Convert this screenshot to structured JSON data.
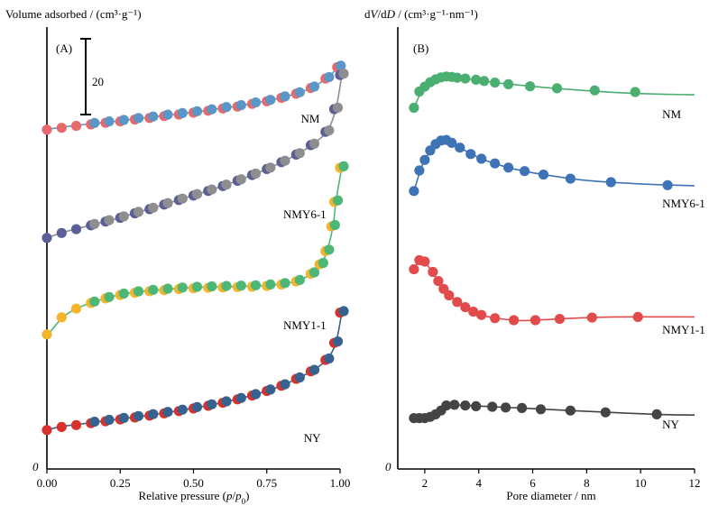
{
  "chart_data": [
    {
      "type": "scatter",
      "panel": "(A)",
      "ylabel": "Volume adsorbed / (cm³·g⁻¹)",
      "xlabel": "Relative pressure (p/p0)",
      "xlabel_parts": [
        "Relative pressure (",
        "p",
        "/",
        "p",
        "0",
        ")"
      ],
      "origin_label": "0",
      "xlim": [
        0,
        1
      ],
      "xticks": [
        "0.00",
        "0.25",
        "0.50",
        "0.75",
        "1.00"
      ],
      "scale_bar_label": "20",
      "scale_bar_value": 20,
      "y_axis_numeric": false,
      "legend": "curve labels at right end of each isotherm",
      "series": [
        {
          "name": "NM",
          "colors": [
            "#e8696b",
            "#5b97c6"
          ],
          "label_x": 0.86,
          "x": [
            0.0,
            0.05,
            0.1,
            0.15,
            0.2,
            0.25,
            0.3,
            0.35,
            0.4,
            0.45,
            0.5,
            0.55,
            0.6,
            0.65,
            0.7,
            0.75,
            0.8,
            0.85,
            0.9,
            0.95,
            0.99
          ],
          "y": [
            0.0,
            0.5,
            1.0,
            1.4,
            1.8,
            2.2,
            2.7,
            3.1,
            3.6,
            4.0,
            4.5,
            5.0,
            5.6,
            6.1,
            6.8,
            7.5,
            8.4,
            9.5,
            11.0,
            13.5,
            16.5
          ]
        },
        {
          "name": "NMY6-1",
          "colors": [
            "#5c5f96",
            "#8e8e91"
          ],
          "label_x": 0.8,
          "x": [
            0.0,
            0.05,
            0.1,
            0.15,
            0.2,
            0.25,
            0.3,
            0.35,
            0.4,
            0.45,
            0.5,
            0.55,
            0.6,
            0.65,
            0.7,
            0.75,
            0.8,
            0.85,
            0.9,
            0.95,
            0.98,
            1.0
          ],
          "y": [
            0.0,
            1.3,
            2.3,
            3.3,
            4.3,
            5.3,
            6.5,
            7.6,
            8.8,
            10.0,
            11.2,
            12.4,
            13.7,
            15.1,
            16.6,
            18.2,
            20.0,
            22.0,
            24.5,
            28.0,
            34.0,
            43.0
          ]
        },
        {
          "name": "NMY1-1",
          "colors": [
            "#f2b52b",
            "#4cb777"
          ],
          "label_x": 0.8,
          "x": [
            0.0,
            0.05,
            0.1,
            0.15,
            0.2,
            0.25,
            0.3,
            0.35,
            0.4,
            0.45,
            0.5,
            0.55,
            0.6,
            0.65,
            0.7,
            0.75,
            0.8,
            0.85,
            0.9,
            0.93,
            0.95,
            0.97,
            0.98,
            1.0
          ],
          "y": [
            0.0,
            4.5,
            6.8,
            8.3,
            9.5,
            10.4,
            11.0,
            11.4,
            11.7,
            12.0,
            12.2,
            12.3,
            12.4,
            12.5,
            12.6,
            12.8,
            13.2,
            14.0,
            16.0,
            18.5,
            22.0,
            28.5,
            35.0,
            44.0
          ]
        },
        {
          "name": "NY",
          "colors": [
            "#d8322c",
            "#36628f"
          ],
          "label_x": 0.87,
          "x": [
            0.0,
            0.05,
            0.1,
            0.15,
            0.2,
            0.25,
            0.3,
            0.35,
            0.4,
            0.45,
            0.5,
            0.55,
            0.6,
            0.65,
            0.7,
            0.75,
            0.8,
            0.85,
            0.9,
            0.95,
            0.98,
            1.0
          ],
          "y": [
            0.0,
            0.8,
            1.3,
            1.8,
            2.3,
            2.8,
            3.3,
            3.8,
            4.4,
            5.0,
            5.7,
            6.4,
            7.2,
            8.1,
            9.1,
            10.3,
            11.7,
            13.5,
            15.5,
            18.5,
            23.0,
            31.0
          ]
        }
      ]
    },
    {
      "type": "line",
      "panel": "(B)",
      "ylabel": "dV/dD / (cm³·g⁻¹·nm⁻¹)",
      "ylabel_parts": [
        "d",
        "V",
        "/d",
        "D",
        " / (cm³·g⁻¹·nm⁻¹)"
      ],
      "xlabel": "Pore diameter / nm",
      "origin_label": "0",
      "xlim": [
        1,
        12
      ],
      "xticks": [
        "2",
        "4",
        "6",
        "8",
        "10",
        "12"
      ],
      "y_axis_numeric": false,
      "legend": "curve labels at right end of each curve",
      "series": [
        {
          "name": "NM",
          "color": "#4caf72",
          "label_x": 10.8,
          "x": [
            1.6,
            1.8,
            2.0,
            2.2,
            2.4,
            2.6,
            2.8,
            3.0,
            3.2,
            3.5,
            3.9,
            4.2,
            4.6,
            5.1,
            5.9,
            6.9,
            8.3,
            9.8
          ],
          "y": [
            0.1,
            0.5,
            0.62,
            0.73,
            0.8,
            0.85,
            0.87,
            0.86,
            0.84,
            0.82,
            0.79,
            0.76,
            0.72,
            0.68,
            0.63,
            0.58,
            0.53,
            0.49
          ],
          "curve_x": [
            1.6,
            2.0,
            2.6,
            3.0,
            3.5,
            4.5,
            5.5,
            7.0,
            9.0,
            10.5,
            12.0
          ],
          "curve_y": [
            0.1,
            0.62,
            0.85,
            0.86,
            0.82,
            0.73,
            0.66,
            0.57,
            0.48,
            0.44,
            0.42
          ]
        },
        {
          "name": "NMY6-1",
          "color": "#3e74b6",
          "label_x": 10.8,
          "x": [
            1.6,
            1.8,
            2.0,
            2.2,
            2.4,
            2.6,
            2.8,
            3.0,
            3.3,
            3.7,
            4.1,
            4.6,
            5.1,
            5.7,
            6.4,
            7.4,
            8.9,
            11.0
          ],
          "y": [
            0.05,
            0.4,
            0.58,
            0.74,
            0.85,
            0.91,
            0.92,
            0.87,
            0.79,
            0.68,
            0.6,
            0.52,
            0.45,
            0.39,
            0.33,
            0.26,
            0.2,
            0.15
          ],
          "curve_x": [
            1.6,
            2.0,
            2.6,
            2.8,
            3.3,
            4.1,
            5.1,
            6.4,
            8.0,
            10.0,
            12.0
          ],
          "curve_y": [
            0.05,
            0.58,
            0.91,
            0.92,
            0.79,
            0.6,
            0.45,
            0.33,
            0.23,
            0.17,
            0.14
          ]
        },
        {
          "name": "NMY1-1",
          "color": "#e14b4b",
          "label_x": 10.8,
          "x": [
            1.6,
            1.8,
            2.0,
            2.3,
            2.5,
            2.7,
            2.9,
            3.2,
            3.5,
            3.8,
            4.1,
            4.6,
            5.3,
            6.1,
            7.0,
            8.2,
            9.9
          ],
          "y": [
            0.78,
            0.92,
            0.9,
            0.74,
            0.6,
            0.48,
            0.38,
            0.28,
            0.2,
            0.13,
            0.08,
            0.03,
            0.0,
            0.0,
            0.02,
            0.04,
            0.05
          ],
          "curve_x": [
            1.6,
            1.8,
            2.0,
            2.5,
            3.2,
            4.1,
            5.3,
            6.1,
            7.5,
            9.0,
            12.0
          ],
          "curve_y": [
            0.78,
            0.92,
            0.9,
            0.6,
            0.28,
            0.08,
            0.0,
            0.0,
            0.03,
            0.05,
            0.05
          ]
        },
        {
          "name": "NY",
          "color": "#444444",
          "label_x": 10.8,
          "x": [
            1.6,
            1.8,
            2.0,
            2.2,
            2.4,
            2.6,
            2.8,
            3.1,
            3.5,
            3.9,
            4.5,
            5.0,
            5.6,
            6.3,
            7.4,
            8.7,
            10.6
          ],
          "y": [
            0.05,
            0.05,
            0.05,
            0.1,
            0.2,
            0.35,
            0.55,
            0.58,
            0.55,
            0.52,
            0.5,
            0.47,
            0.45,
            0.4,
            0.35,
            0.28,
            0.2
          ],
          "curve_x": [
            1.6,
            2.0,
            2.4,
            2.8,
            3.5,
            4.5,
            5.6,
            7.4,
            9.0,
            10.6,
            12.0
          ],
          "curve_y": [
            0.05,
            0.05,
            0.2,
            0.55,
            0.55,
            0.5,
            0.45,
            0.35,
            0.27,
            0.2,
            0.17
          ]
        }
      ]
    }
  ]
}
